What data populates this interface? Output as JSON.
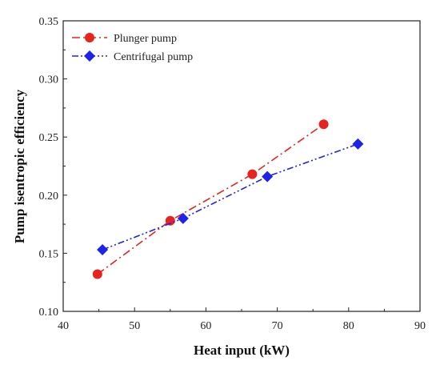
{
  "chart_data": {
    "type": "line",
    "xlabel": "Heat input (kW)",
    "ylabel": "Pump isentropic efficiency",
    "xlim": [
      40,
      90
    ],
    "ylim": [
      0.1,
      0.35
    ],
    "xticks": [
      40,
      50,
      60,
      70,
      80,
      90
    ],
    "yticks": [
      0.1,
      0.15,
      0.2,
      0.25,
      0.3,
      0.35
    ],
    "xtick_labels": [
      "40",
      "50",
      "60",
      "70",
      "80",
      "90"
    ],
    "ytick_labels": [
      "0.10",
      "0.15",
      "0.20",
      "0.25",
      "0.30",
      "0.35"
    ],
    "grid": false,
    "legend_position": "top-left",
    "series": [
      {
        "name": "Plunger pump",
        "color": "#e8231f",
        "marker": "circle",
        "line_style": "dash-dot",
        "x": [
          44.8,
          55.0,
          66.5,
          76.5
        ],
        "y": [
          0.132,
          0.178,
          0.218,
          0.261
        ]
      },
      {
        "name": "Centrifugal pump",
        "color": "#1f23e8",
        "marker": "diamond",
        "line_style": "dash-dot-dot",
        "x": [
          45.5,
          56.8,
          68.6,
          81.3
        ],
        "y": [
          0.153,
          0.18,
          0.216,
          0.244
        ]
      }
    ]
  }
}
